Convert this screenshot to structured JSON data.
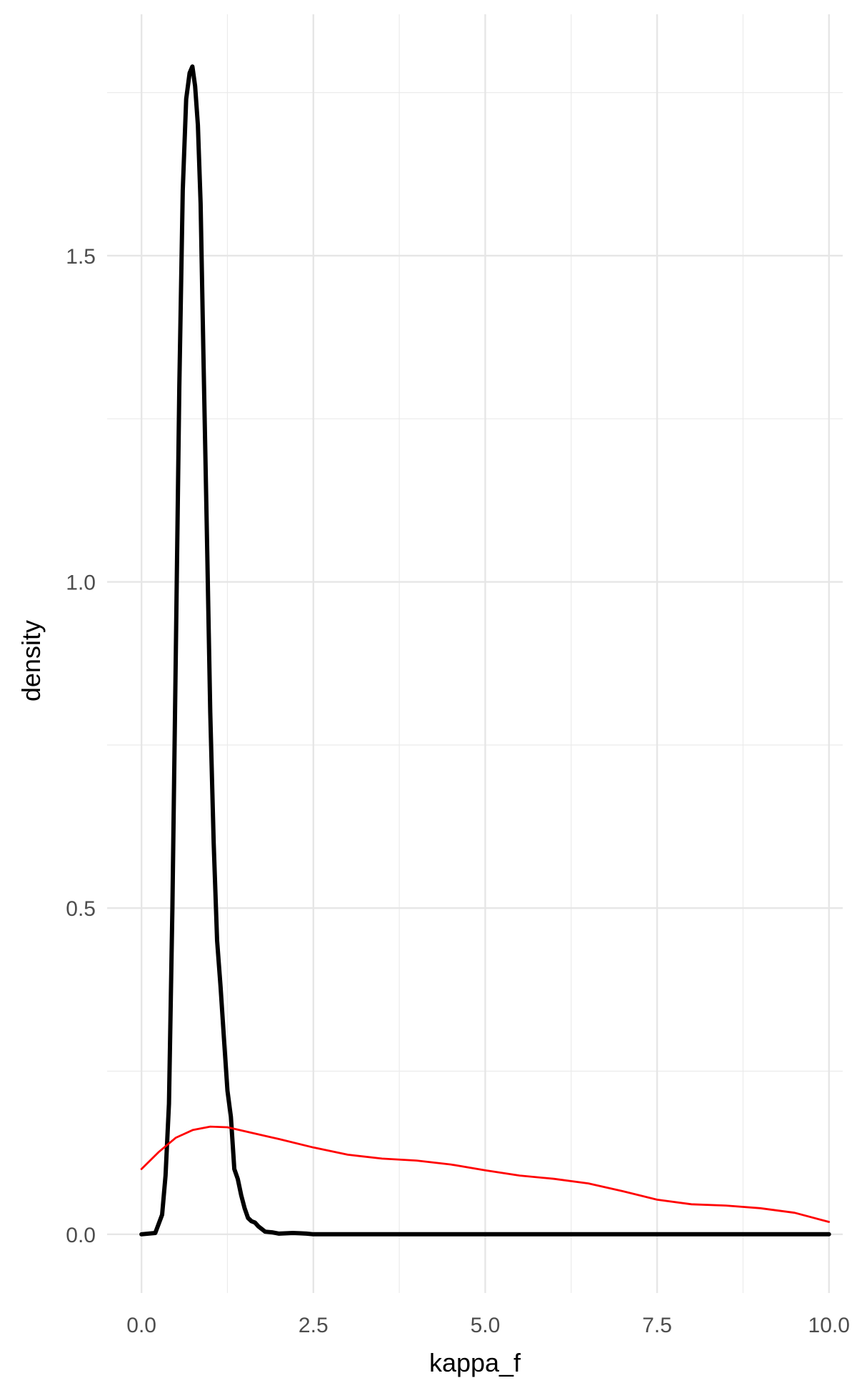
{
  "chart_data": {
    "type": "line",
    "title": "",
    "xlabel": "kappa_f",
    "ylabel": "density",
    "xlim": [
      -0.5,
      10.2
    ],
    "ylim": [
      -0.09,
      1.87
    ],
    "x_ticks": [
      0.0,
      2.5,
      5.0,
      7.5,
      10.0
    ],
    "x_tick_labels": [
      "0.0",
      "2.5",
      "5.0",
      "7.5",
      "10.0"
    ],
    "y_ticks": [
      0.0,
      0.5,
      1.0,
      1.5
    ],
    "y_tick_labels": [
      "0.0",
      "0.5",
      "1.0",
      "1.5"
    ],
    "x_minor": [
      1.25,
      3.75,
      6.25,
      8.75
    ],
    "y_minor": [
      0.25,
      0.75,
      1.25,
      1.75
    ],
    "grid": true,
    "legend": "none",
    "series": [
      {
        "color": "#000000",
        "x": [
          0.0,
          0.2,
          0.3,
          0.35,
          0.4,
          0.45,
          0.5,
          0.55,
          0.6,
          0.65,
          0.7,
          0.74,
          0.78,
          0.82,
          0.86,
          0.9,
          0.95,
          1.0,
          1.05,
          1.1,
          1.15,
          1.2,
          1.25,
          1.3,
          1.35,
          1.4,
          1.45,
          1.5,
          1.55,
          1.6,
          1.65,
          1.7,
          1.75,
          1.8,
          1.9,
          2.0,
          2.2,
          2.3,
          2.4,
          2.5,
          3.0,
          5.0,
          7.5,
          10.0
        ],
        "y": [
          0.0,
          0.002,
          0.03,
          0.09,
          0.2,
          0.5,
          0.9,
          1.3,
          1.6,
          1.74,
          1.78,
          1.79,
          1.76,
          1.7,
          1.58,
          1.35,
          1.08,
          0.8,
          0.6,
          0.45,
          0.38,
          0.3,
          0.22,
          0.18,
          0.1,
          0.085,
          0.06,
          0.04,
          0.025,
          0.02,
          0.018,
          0.012,
          0.008,
          0.004,
          0.003,
          0.001,
          0.002,
          0.0015,
          0.001,
          0.0,
          0.0,
          0.0,
          0.0,
          0.0
        ]
      },
      {
        "color": "#ff0000",
        "x": [
          0.0,
          0.25,
          0.5,
          0.75,
          1.0,
          1.25,
          1.5,
          2.0,
          2.5,
          3.0,
          3.5,
          4.0,
          4.5,
          5.0,
          5.5,
          6.0,
          6.5,
          7.0,
          7.5,
          8.0,
          8.5,
          9.0,
          9.5,
          10.0
        ],
        "y": [
          0.1,
          0.126,
          0.148,
          0.16,
          0.165,
          0.164,
          0.158,
          0.146,
          0.133,
          0.122,
          0.116,
          0.113,
          0.107,
          0.098,
          0.09,
          0.085,
          0.078,
          0.066,
          0.053,
          0.046,
          0.044,
          0.04,
          0.033,
          0.019
        ]
      }
    ]
  }
}
